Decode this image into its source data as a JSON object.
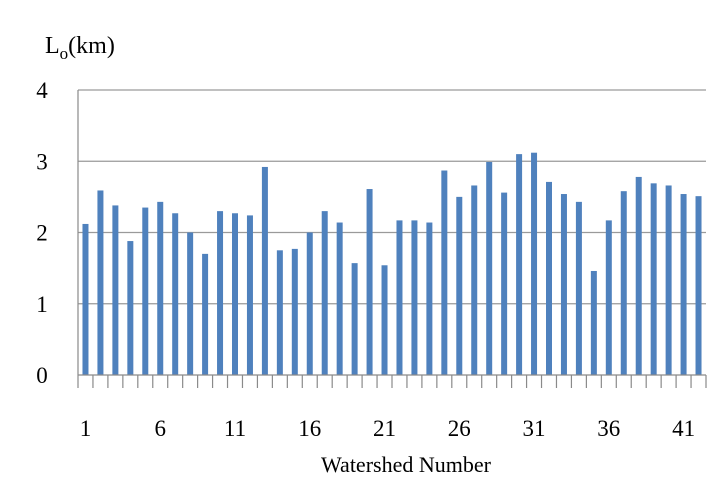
{
  "chart_data": {
    "type": "bar",
    "ylabel_main": "L",
    "ylabel_sub": "o",
    "ylabel_unit": "(km)",
    "xlabel": "Watershed Number",
    "ylim": [
      0,
      4
    ],
    "yticks": [
      "0",
      "1",
      "2",
      "3",
      "4"
    ],
    "xtick_labels": [
      "1",
      "6",
      "11",
      "16",
      "21",
      "26",
      "31",
      "36",
      "41"
    ],
    "grid": "horizontal",
    "bar_color": "#4f81bd",
    "categories": [
      1,
      2,
      3,
      4,
      5,
      6,
      7,
      8,
      9,
      10,
      11,
      12,
      13,
      14,
      15,
      16,
      17,
      18,
      19,
      20,
      21,
      22,
      23,
      24,
      25,
      26,
      27,
      28,
      29,
      30,
      31,
      32,
      33,
      34,
      35,
      36,
      37,
      38,
      39,
      40,
      41,
      42
    ],
    "values": [
      2.12,
      2.59,
      2.38,
      1.88,
      2.35,
      2.43,
      2.27,
      2.0,
      1.7,
      2.3,
      2.27,
      2.24,
      2.92,
      1.75,
      1.77,
      2.0,
      2.3,
      2.14,
      1.57,
      2.61,
      1.54,
      2.17,
      2.17,
      2.14,
      2.87,
      2.5,
      2.66,
      2.99,
      2.56,
      3.1,
      3.12,
      2.71,
      2.54,
      2.43,
      1.46,
      2.17,
      2.58,
      2.78,
      2.69,
      2.66,
      2.54,
      2.51
    ]
  }
}
